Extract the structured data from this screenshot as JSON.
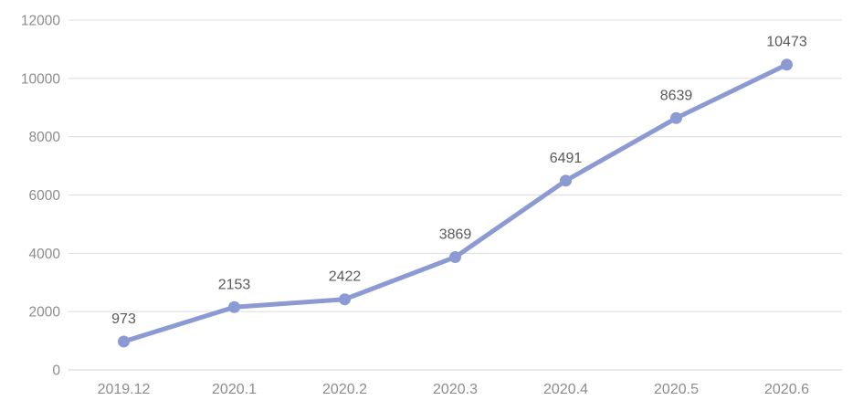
{
  "chart_data": {
    "type": "line",
    "title": "",
    "xlabel": "",
    "ylabel": "",
    "categories": [
      "2019.12",
      "2020.1",
      "2020.2",
      "2020.3",
      "2020.4",
      "2020.5",
      "2020.6"
    ],
    "values": [
      973,
      2153,
      2422,
      3869,
      6491,
      8639,
      10473
    ],
    "data_labels_visible": true,
    "ylim": [
      0,
      12000
    ],
    "yticks": [
      0,
      2000,
      4000,
      6000,
      8000,
      10000,
      12000
    ],
    "grid": true,
    "legend_position": "none",
    "colors": {
      "line": "#8b9ad3",
      "marker": "#8b9ad3",
      "gridline": "#dcdcdc",
      "axis_line": "#d4d4d4",
      "tick_label": "#8c8c8c",
      "data_label": "#595959",
      "background": "#ffffff"
    }
  }
}
